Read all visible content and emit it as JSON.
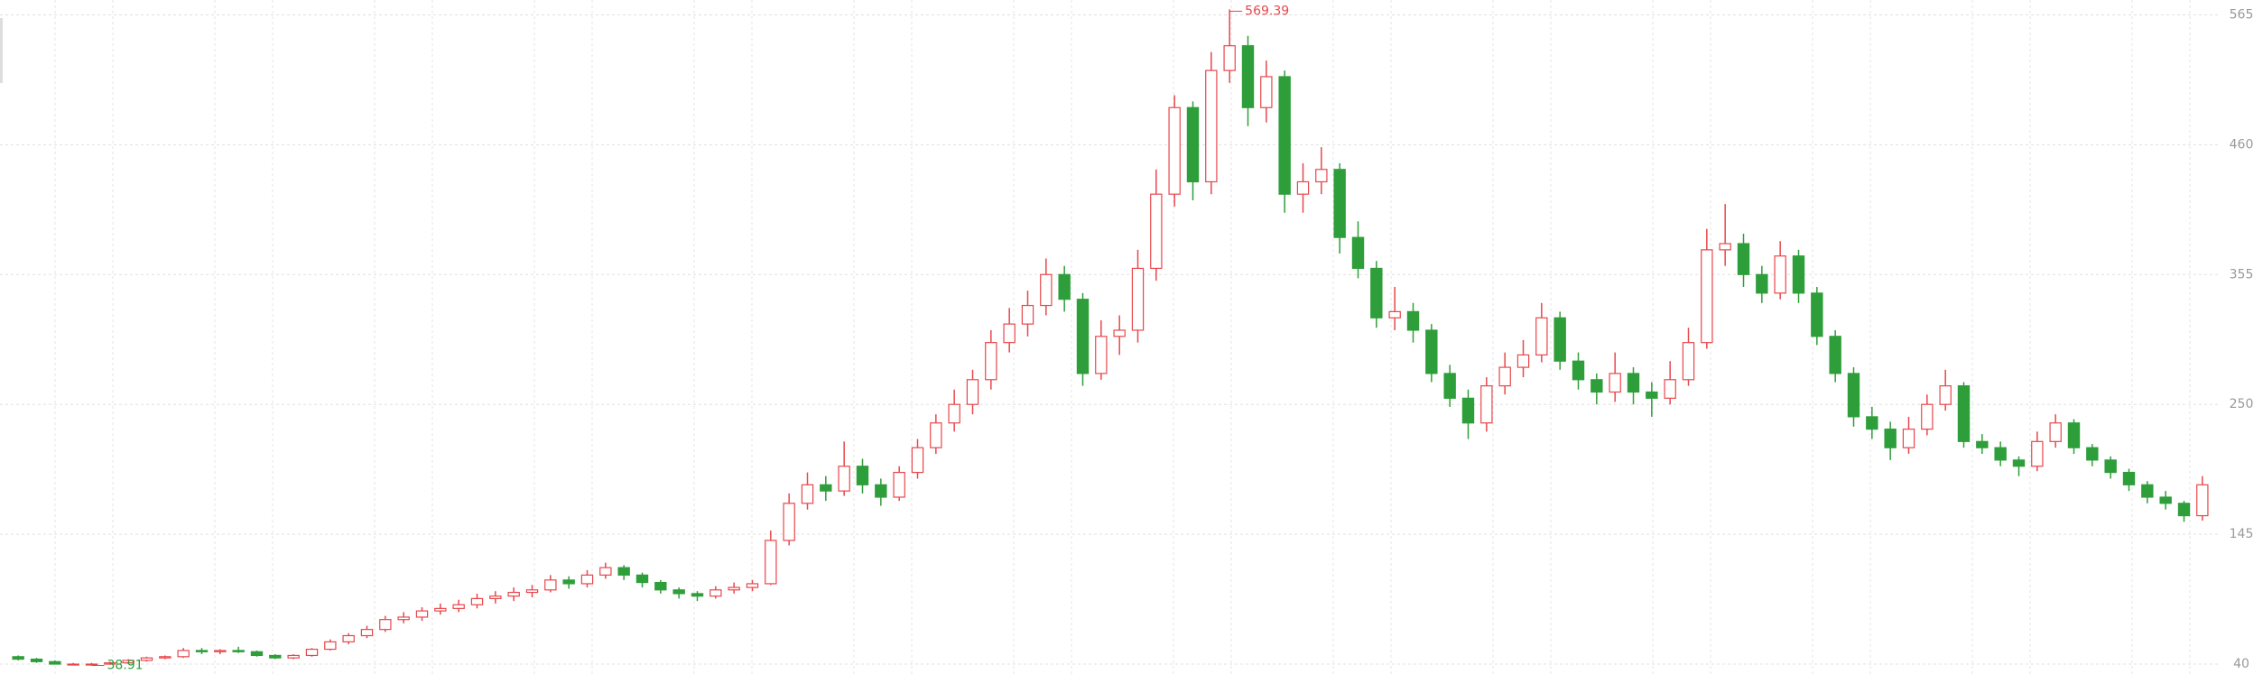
{
  "chart_data": {
    "type": "candlestick",
    "up_color": "#e8474b",
    "down_color": "#2e9e3a",
    "grid": true,
    "ylim": [
      32,
      577
    ],
    "yticks": [
      40,
      145,
      250,
      355,
      460,
      565
    ],
    "ohlc": [
      [
        46,
        47,
        43,
        44
      ],
      [
        44,
        45,
        41,
        42
      ],
      [
        42,
        43,
        40,
        40
      ],
      [
        40,
        41,
        39.5,
        40
      ],
      [
        40,
        41,
        38.91,
        40
      ],
      [
        40,
        42,
        39.5,
        41
      ],
      [
        41,
        44,
        40,
        43
      ],
      [
        43,
        46,
        42,
        45
      ],
      [
        45,
        47,
        44,
        46
      ],
      [
        46,
        53,
        45,
        51
      ],
      [
        51,
        53,
        48,
        50
      ],
      [
        50,
        52,
        48,
        51
      ],
      [
        51,
        54,
        49,
        50
      ],
      [
        50,
        51,
        46,
        47
      ],
      [
        47,
        48,
        44,
        45
      ],
      [
        45,
        48,
        44,
        47
      ],
      [
        47,
        53,
        46,
        52
      ],
      [
        52,
        60,
        51,
        58
      ],
      [
        58,
        65,
        56,
        63
      ],
      [
        63,
        71,
        61,
        68
      ],
      [
        68,
        79,
        66,
        76
      ],
      [
        76,
        82,
        73,
        78
      ],
      [
        78,
        86,
        75,
        83
      ],
      [
        83,
        89,
        80,
        85
      ],
      [
        85,
        92,
        82,
        88
      ],
      [
        88,
        97,
        85,
        93
      ],
      [
        93,
        99,
        89,
        95
      ],
      [
        95,
        102,
        91,
        98
      ],
      [
        98,
        104,
        94,
        100
      ],
      [
        100,
        112,
        98,
        108
      ],
      [
        108,
        111,
        101,
        105
      ],
      [
        105,
        116,
        102,
        112
      ],
      [
        112,
        122,
        109,
        118
      ],
      [
        118,
        120,
        108,
        112
      ],
      [
        112,
        114,
        102,
        106
      ],
      [
        106,
        108,
        97,
        100
      ],
      [
        100,
        102,
        93,
        97
      ],
      [
        97,
        99,
        91,
        95
      ],
      [
        95,
        103,
        93,
        100
      ],
      [
        100,
        106,
        97,
        102
      ],
      [
        102,
        108,
        99,
        105
      ],
      [
        105,
        148,
        104,
        140
      ],
      [
        140,
        178,
        136,
        170
      ],
      [
        170,
        195,
        165,
        185
      ],
      [
        185,
        192,
        172,
        180
      ],
      [
        180,
        220,
        176,
        200
      ],
      [
        200,
        206,
        178,
        185
      ],
      [
        185,
        190,
        168,
        175
      ],
      [
        175,
        200,
        172,
        195
      ],
      [
        195,
        222,
        190,
        215
      ],
      [
        215,
        242,
        210,
        235
      ],
      [
        235,
        262,
        228,
        250
      ],
      [
        250,
        278,
        242,
        270
      ],
      [
        270,
        310,
        262,
        300
      ],
      [
        300,
        328,
        292,
        315
      ],
      [
        315,
        342,
        305,
        330
      ],
      [
        330,
        368,
        322,
        355
      ],
      [
        355,
        362,
        325,
        335
      ],
      [
        335,
        340,
        265,
        275
      ],
      [
        275,
        318,
        270,
        305
      ],
      [
        305,
        322,
        290,
        310
      ],
      [
        310,
        375,
        300,
        360
      ],
      [
        360,
        440,
        350,
        420
      ],
      [
        420,
        500,
        410,
        490
      ],
      [
        490,
        495,
        415,
        430
      ],
      [
        430,
        535,
        420,
        520
      ],
      [
        520,
        569.39,
        510,
        540
      ],
      [
        540,
        548,
        475,
        490
      ],
      [
        490,
        528,
        478,
        515
      ],
      [
        515,
        520,
        405,
        420
      ],
      [
        420,
        445,
        405,
        430
      ],
      [
        430,
        458,
        420,
        440
      ],
      [
        440,
        445,
        372,
        385
      ],
      [
        385,
        398,
        352,
        360
      ],
      [
        360,
        366,
        312,
        320
      ],
      [
        320,
        345,
        310,
        325
      ],
      [
        325,
        332,
        300,
        310
      ],
      [
        310,
        315,
        268,
        275
      ],
      [
        275,
        282,
        248,
        255
      ],
      [
        255,
        262,
        222,
        235
      ],
      [
        235,
        272,
        228,
        265
      ],
      [
        265,
        292,
        258,
        280
      ],
      [
        280,
        302,
        272,
        290
      ],
      [
        290,
        332,
        284,
        320
      ],
      [
        320,
        325,
        278,
        285
      ],
      [
        285,
        292,
        262,
        270
      ],
      [
        270,
        275,
        250,
        260
      ],
      [
        260,
        292,
        252,
        275
      ],
      [
        275,
        280,
        250,
        260
      ],
      [
        260,
        268,
        240,
        255
      ],
      [
        255,
        285,
        250,
        270
      ],
      [
        270,
        312,
        265,
        300
      ],
      [
        300,
        392,
        295,
        375
      ],
      [
        375,
        412,
        362,
        380
      ],
      [
        380,
        388,
        345,
        355
      ],
      [
        355,
        362,
        332,
        340
      ],
      [
        340,
        382,
        335,
        370
      ],
      [
        370,
        375,
        332,
        340
      ],
      [
        340,
        345,
        298,
        305
      ],
      [
        305,
        310,
        268,
        275
      ],
      [
        275,
        280,
        232,
        240
      ],
      [
        240,
        248,
        222,
        230
      ],
      [
        230,
        236,
        205,
        215
      ],
      [
        215,
        240,
        210,
        230
      ],
      [
        230,
        258,
        225,
        250
      ],
      [
        250,
        278,
        245,
        265
      ],
      [
        265,
        268,
        215,
        220
      ],
      [
        220,
        226,
        210,
        215
      ],
      [
        215,
        220,
        200,
        205
      ],
      [
        205,
        208,
        192,
        200
      ],
      [
        200,
        228,
        196,
        220
      ],
      [
        220,
        242,
        215,
        235
      ],
      [
        235,
        238,
        210,
        215
      ],
      [
        215,
        218,
        200,
        205
      ],
      [
        205,
        208,
        190,
        195
      ],
      [
        195,
        198,
        180,
        185
      ],
      [
        185,
        188,
        170,
        175
      ],
      [
        175,
        180,
        165,
        170
      ],
      [
        170,
        172,
        155,
        160
      ],
      [
        160,
        192,
        156,
        185
      ]
    ]
  }
}
